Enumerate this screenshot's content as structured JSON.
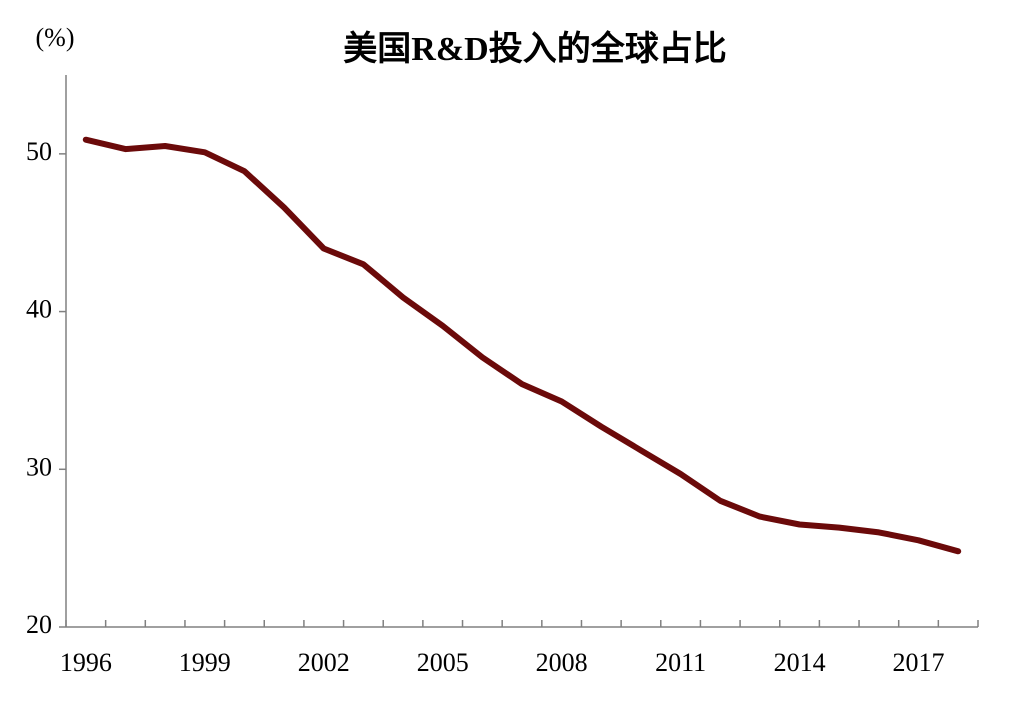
{
  "chart_data": {
    "type": "line",
    "title": "美国R&D投入的全球占比",
    "unit_label": "(%)",
    "categories": [
      "1996",
      null,
      null,
      "1999",
      null,
      null,
      "2002",
      null,
      null,
      "2005",
      null,
      null,
      "2008",
      null,
      null,
      "2011",
      null,
      null,
      "2014",
      null,
      null,
      "2017",
      null
    ],
    "series": [
      {
        "name": "美国R&D投入的全球占比",
        "color": "#6b0a0a",
        "values": [
          50.9,
          50.3,
          50.5,
          50.1,
          48.9,
          46.6,
          44.0,
          43.0,
          40.9,
          39.1,
          37.1,
          35.4,
          34.3,
          32.7,
          31.2,
          29.7,
          28.0,
          27.0,
          26.5,
          26.3,
          26.0,
          25.5,
          24.8
        ]
      }
    ],
    "ylim": [
      20,
      55
    ],
    "yticks": [
      20,
      30,
      40,
      50
    ],
    "grid": false
  }
}
